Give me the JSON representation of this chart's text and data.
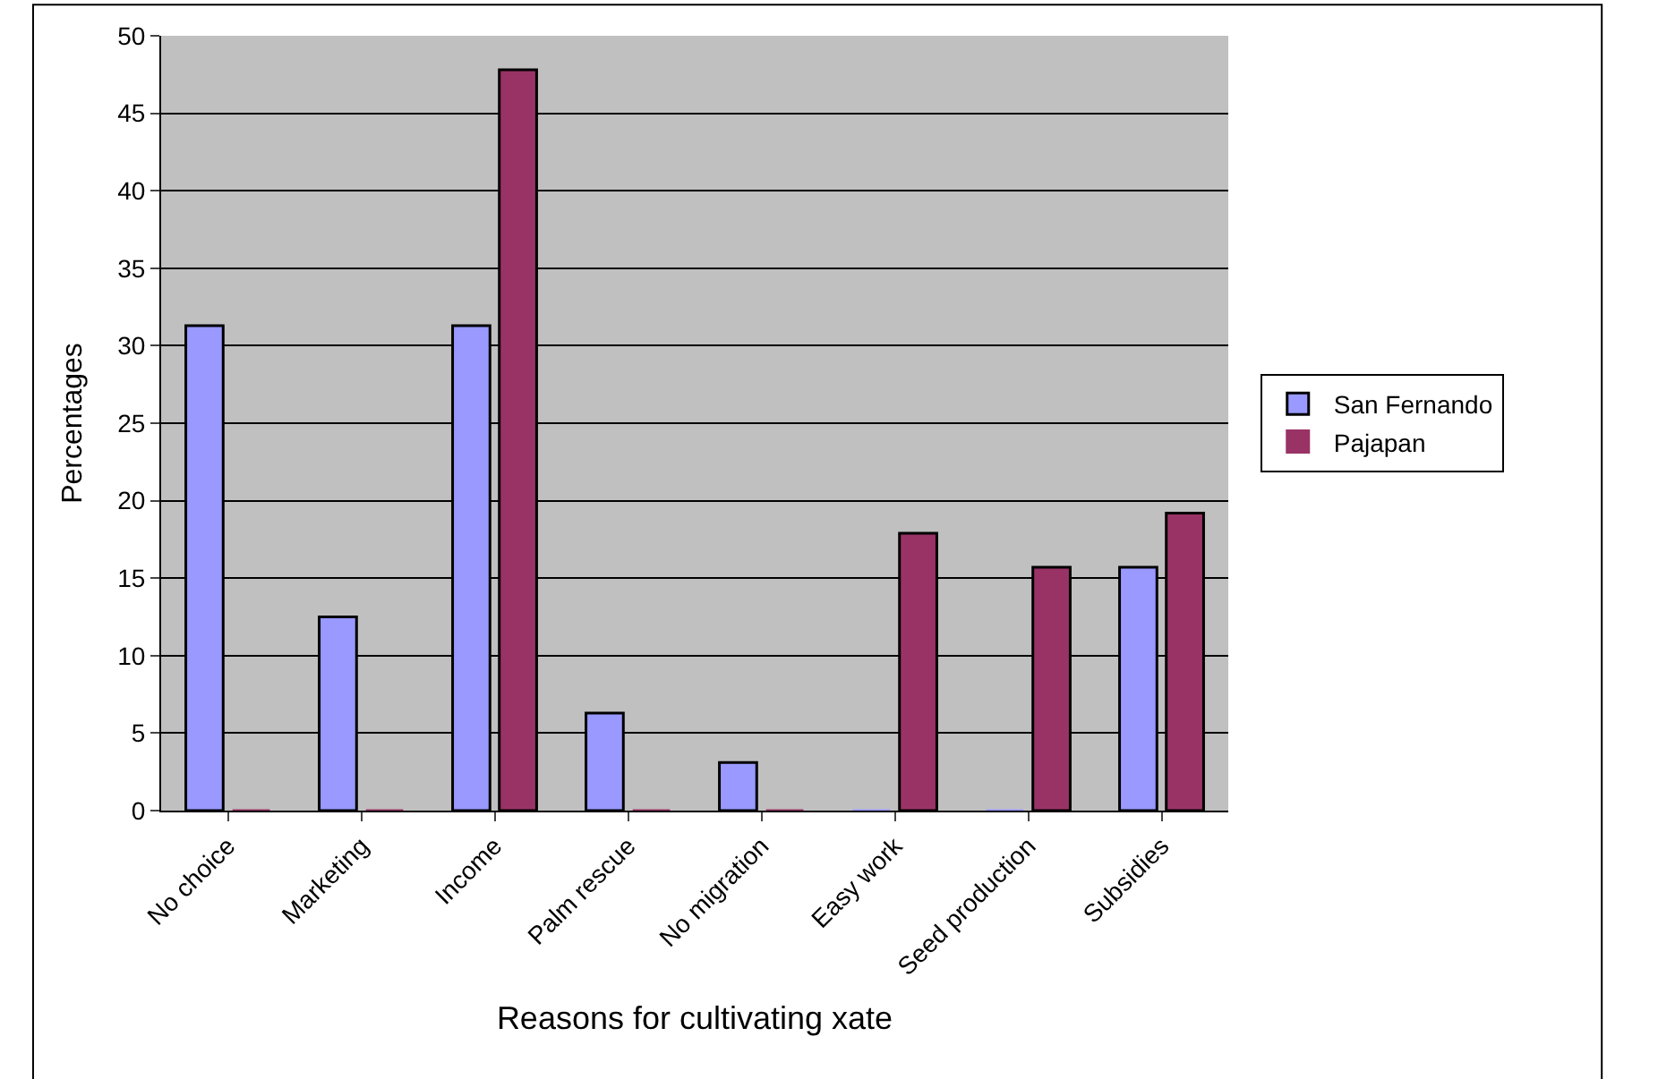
{
  "chart_data": {
    "type": "bar",
    "xlabel": "Reasons for cultivating xate",
    "ylabel": "Percentages",
    "categories": [
      "No choice",
      "Marketing",
      "Income",
      "Palm rescue",
      "No migration",
      "Easy work",
      "Seed production",
      "Subsidies"
    ],
    "series": [
      {
        "name": "San Fernando",
        "color": "#9999ff",
        "values": [
          31.3,
          12.5,
          31.3,
          6.3,
          3.1,
          0,
          0,
          15.7
        ]
      },
      {
        "name": "Pajapan",
        "color": "#993366",
        "values": [
          0,
          0,
          47.8,
          0,
          0,
          17.9,
          15.7,
          19.2
        ]
      }
    ],
    "ylim": [
      0,
      50
    ],
    "yticks": [
      0,
      5,
      10,
      15,
      20,
      25,
      30,
      35,
      40,
      45,
      50
    ],
    "grid": "y",
    "legend": "right"
  }
}
